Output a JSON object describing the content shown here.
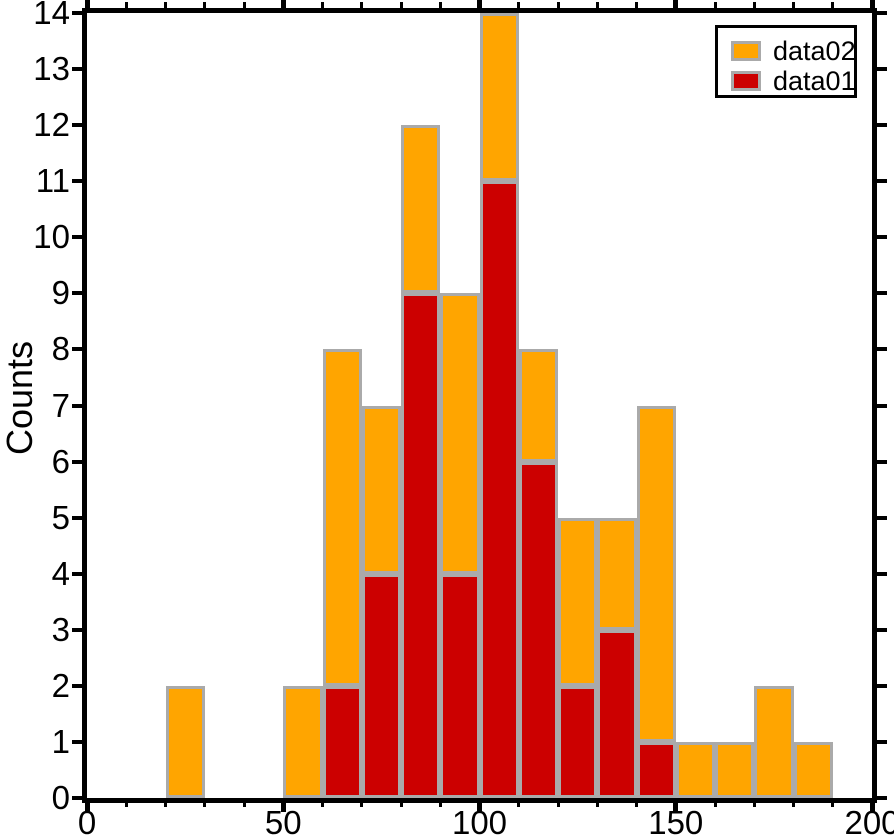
{
  "figure": {
    "background": "#ffffff",
    "frame_color": "#000000",
    "bar_edge_color": "#aaaaaa"
  },
  "chart_data": {
    "type": "bar",
    "subtype": "stacked-histogram",
    "title": "",
    "xlabel": "",
    "ylabel": "Counts",
    "xlim": [
      0,
      200
    ],
    "ylim": [
      0,
      14
    ],
    "grid": false,
    "bin_width": 10,
    "bin_edges": [
      0,
      10,
      20,
      30,
      40,
      50,
      60,
      70,
      80,
      90,
      100,
      110,
      120,
      130,
      140,
      150,
      160,
      170,
      180,
      190,
      200
    ],
    "series": [
      {
        "name": "data01",
        "color": "#cc0000",
        "values": [
          0,
          0,
          0,
          0,
          0,
          0,
          2,
          4,
          9,
          4,
          11,
          6,
          2,
          3,
          1,
          0,
          0,
          0,
          0,
          0
        ]
      },
      {
        "name": "data02",
        "color": "#ffa500",
        "values": [
          0,
          0,
          2,
          0,
          0,
          2,
          6,
          3,
          3,
          5,
          3,
          2,
          3,
          2,
          6,
          1,
          1,
          2,
          1,
          0
        ]
      }
    ],
    "stacked_totals": [
      0,
      0,
      2,
      0,
      0,
      2,
      8,
      7,
      12,
      9,
      14,
      8,
      5,
      5,
      7,
      1,
      1,
      2,
      1,
      0
    ],
    "x_major_ticks": [
      0,
      50,
      100,
      150,
      200
    ],
    "x_major_tick_labels": [
      "0",
      "50",
      "100",
      "150",
      "200"
    ],
    "x_minor_step": 10,
    "y_major_step": 1,
    "y_major_tick_labels": [
      "0",
      "1",
      "2",
      "3",
      "4",
      "5",
      "6",
      "7",
      "8",
      "9",
      "10",
      "11",
      "12",
      "13",
      "14"
    ],
    "legend": {
      "position": "top-right",
      "entries": [
        {
          "label": "data02",
          "color": "#ffa500"
        },
        {
          "label": "data01",
          "color": "#cc0000"
        }
      ]
    }
  }
}
